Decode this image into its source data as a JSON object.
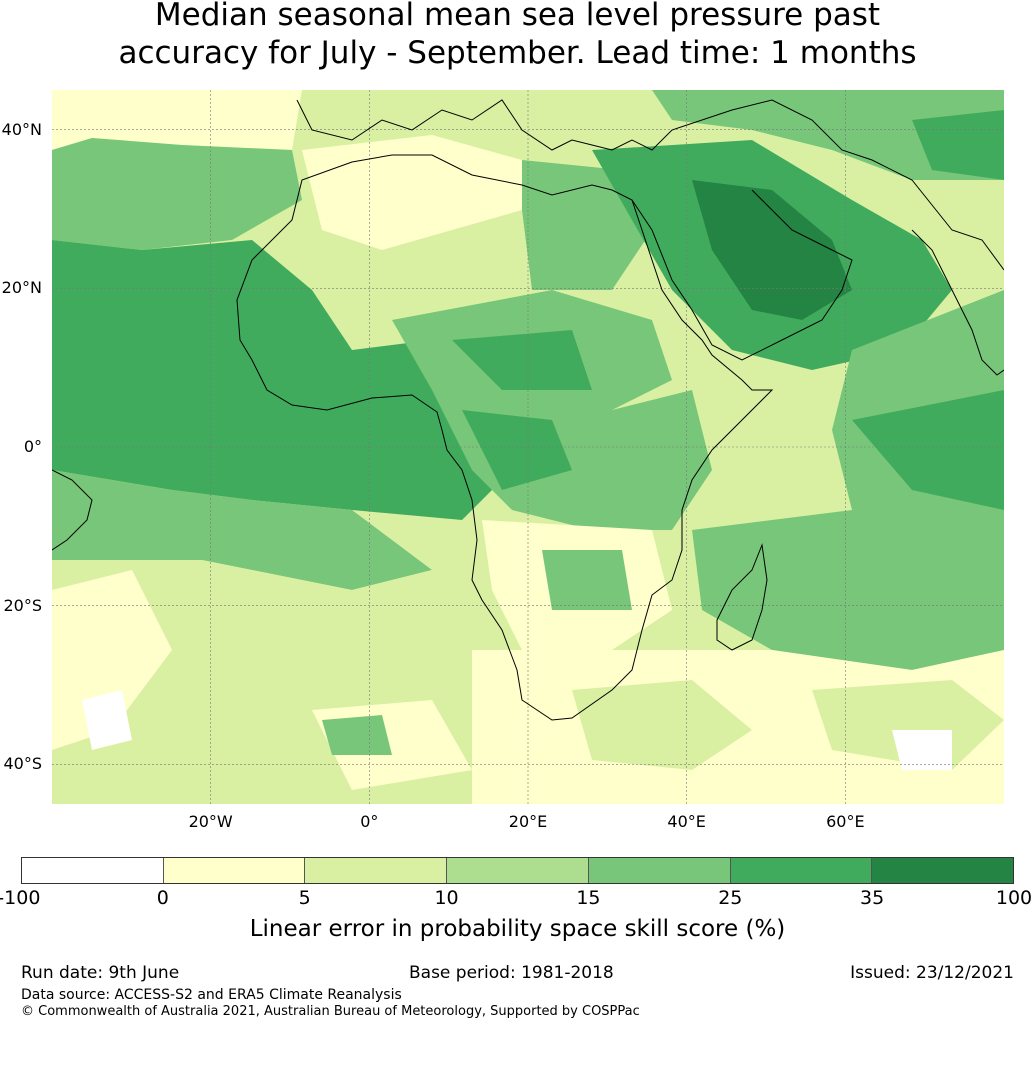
{
  "title_line1": "Median seasonal mean sea level pressure past",
  "title_line2": "accuracy for July - September. Lead time: 1 months",
  "map": {
    "lon_range": [
      -40,
      80
    ],
    "lat_range": [
      -45,
      45
    ],
    "lon_ticks": [
      {
        "value": -20,
        "label": "20°W"
      },
      {
        "value": 0,
        "label": "0°"
      },
      {
        "value": 20,
        "label": "20°E"
      },
      {
        "value": 40,
        "label": "40°E"
      },
      {
        "value": 60,
        "label": "60°E"
      }
    ],
    "lat_ticks": [
      {
        "value": 40,
        "label": "40°N"
      },
      {
        "value": 20,
        "label": "20°N"
      },
      {
        "value": 0,
        "label": "0°"
      },
      {
        "value": -20,
        "label": "20°S"
      },
      {
        "value": -40,
        "label": "40°S"
      }
    ],
    "gridlines": true,
    "coastlines": true
  },
  "colorbar": {
    "label": "Linear error in probability space skill score (%)",
    "ticks": [
      "-100",
      "0",
      "5",
      "10",
      "15",
      "25",
      "35",
      "100"
    ],
    "colors": [
      "#ffffff",
      "#ffffcc",
      "#d9f0a3",
      "#addd8e",
      "#78c679",
      "#41ab5d",
      "#238443"
    ]
  },
  "footer": {
    "run_date": "Run date: 9th June",
    "base_period": "Base period: 1981-2018",
    "issued": "Issued: 23/12/2021",
    "data_source": "Data source: ACCESS-S2 and ERA5 Climate Reanalysis",
    "copyright": "© Commonwealth of Australia 2021, Australian Bureau of Meteorology, Supported by COSPPac"
  }
}
